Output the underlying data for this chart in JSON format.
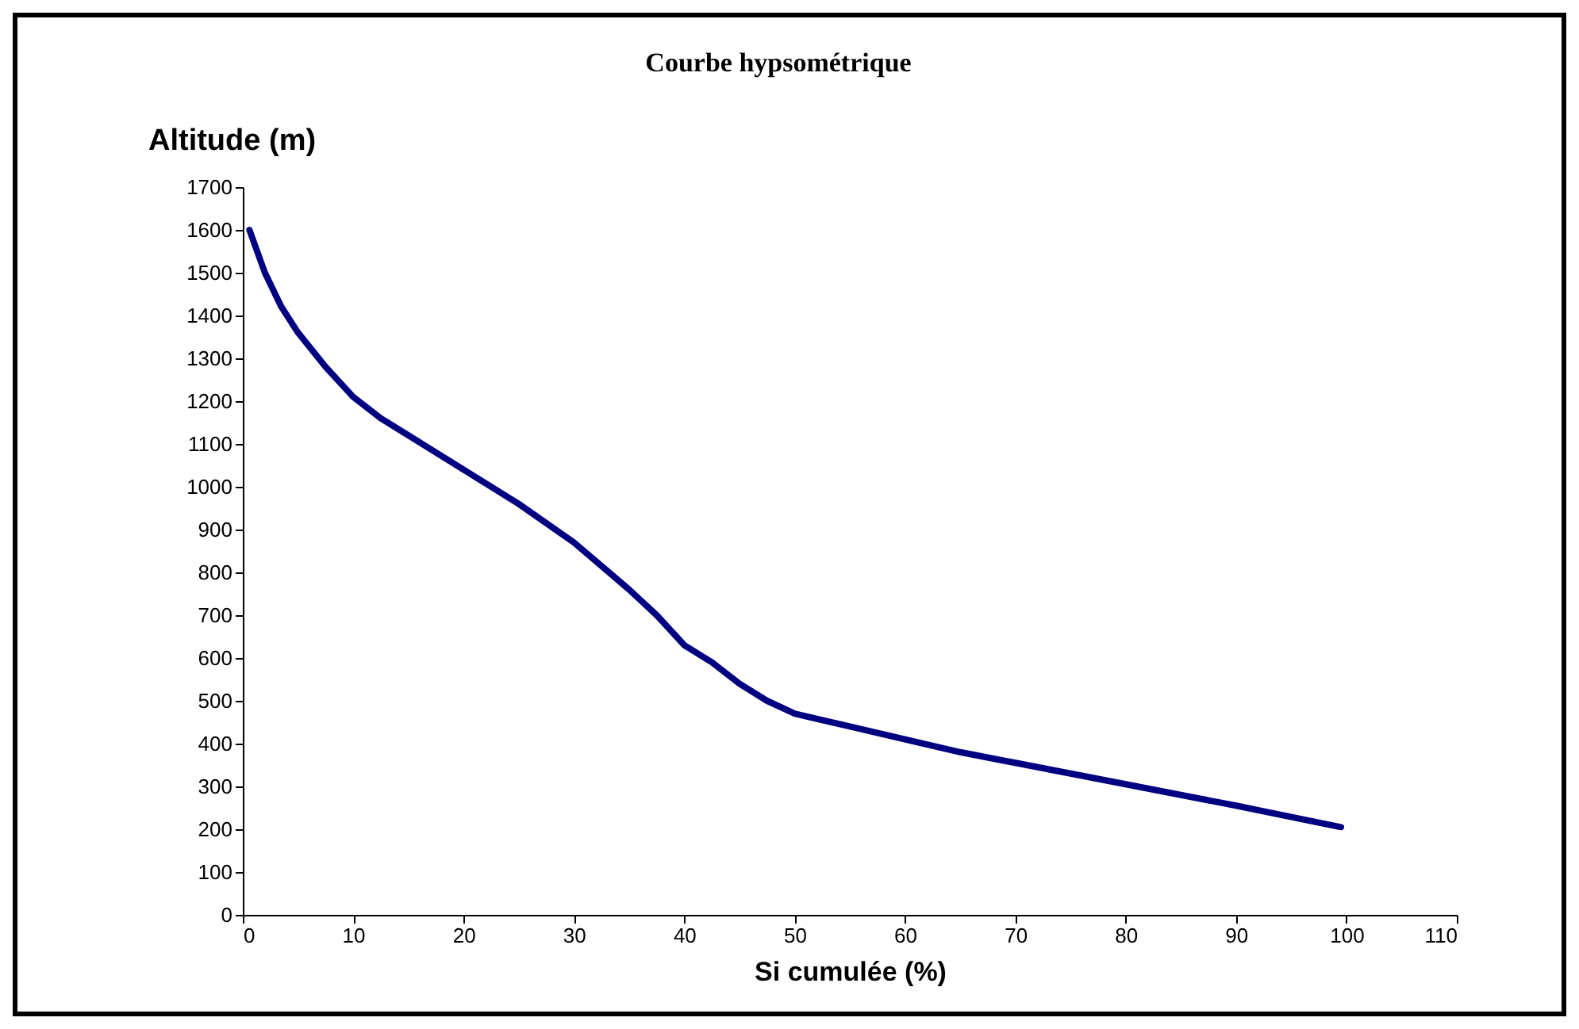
{
  "chart_data": {
    "type": "line",
    "title": "Courbe hypsométrique",
    "xlabel": "Si cumulée (%)",
    "ylabel": "Altitude (m)",
    "x": [
      0.6,
      2,
      3.5,
      5,
      7.5,
      10,
      12.5,
      15,
      20,
      25,
      30,
      35,
      37.5,
      40,
      42.5,
      45,
      47.5,
      50,
      55,
      60,
      65,
      70,
      80,
      90,
      99.5
    ],
    "series": [
      {
        "color": "#000080",
        "values": [
          1600,
          1500,
          1420,
          1360,
          1280,
          1210,
          1160,
          1120,
          1040,
          960,
          870,
          760,
          700,
          630,
          590,
          540,
          500,
          470,
          440,
          410,
          380,
          355,
          305,
          255,
          205
        ]
      }
    ],
    "xlim": [
      0,
      110
    ],
    "xticks": [
      0,
      10,
      20,
      30,
      40,
      50,
      60,
      70,
      80,
      90,
      100,
      110
    ],
    "ylim": [
      0,
      1700
    ],
    "yticks": [
      0,
      100,
      200,
      300,
      400,
      500,
      600,
      700,
      800,
      900,
      1000,
      1100,
      1200,
      1300,
      1400,
      1500,
      1600,
      1700
    ],
    "grid": false,
    "marker": "none",
    "line_style": "solid"
  }
}
